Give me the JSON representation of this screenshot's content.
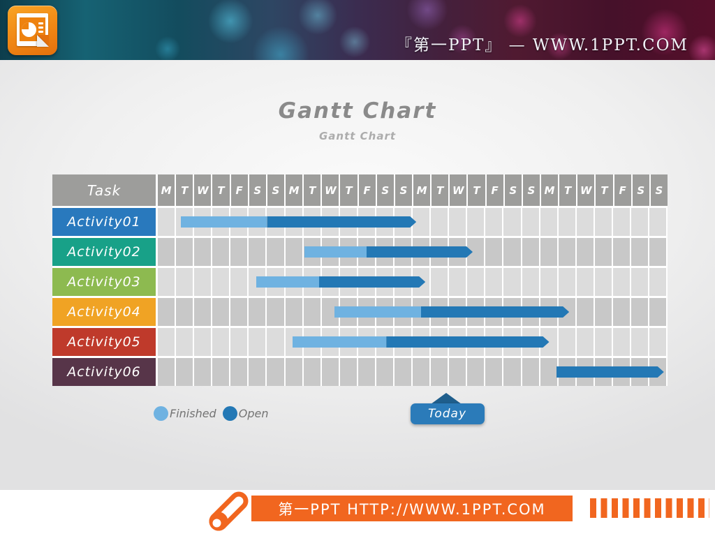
{
  "banner": {
    "brand_text": "『第一PPT』 — WWW.1PPT.COM",
    "logo_icon": "powerpoint-document-icon"
  },
  "slide": {
    "title": "Gantt Chart",
    "subtitle": "Gantt Chart"
  },
  "chart_data": {
    "type": "gantt",
    "title": "Gantt Chart",
    "task_header": "Task",
    "day_labels": [
      "M",
      "T",
      "W",
      "T",
      "F",
      "S",
      "S",
      "M",
      "T",
      "W",
      "T",
      "F",
      "S",
      "S",
      "M",
      "T",
      "W",
      "T",
      "F",
      "S",
      "S",
      "M",
      "T",
      "W",
      "T",
      "F",
      "S",
      "S"
    ],
    "total_days": 28,
    "tasks": [
      {
        "label": "Activity01",
        "color": "#2979BD",
        "start": 1.25,
        "finished_until": 6.0,
        "end": 14.2
      },
      {
        "label": "Activity02",
        "color": "#18A188",
        "start": 8.05,
        "finished_until": 11.45,
        "end": 17.3
      },
      {
        "label": "Activity03",
        "color": "#8DBA50",
        "start": 5.4,
        "finished_until": 8.85,
        "end": 14.7
      },
      {
        "label": "Activity04",
        "color": "#F0A324",
        "start": 9.7,
        "finished_until": 14.45,
        "end": 22.6
      },
      {
        "label": "Activity05",
        "color": "#BF3A2B",
        "start": 7.4,
        "finished_until": 12.55,
        "end": 21.5
      },
      {
        "label": "Activity06",
        "color": "#573549",
        "start": 21.9,
        "finished_until": 21.9,
        "end": 27.8
      }
    ],
    "legend": [
      {
        "label": "Finished",
        "color": "#6FB2E1"
      },
      {
        "label": "Open",
        "color": "#2378B5"
      }
    ],
    "today": {
      "label": "Today",
      "day": 15.9
    },
    "colors": {
      "finished_bar": "#6FB2E1",
      "open_bar": "#2378B5",
      "header_bg": "#9D9D9B",
      "row_bg_odd": "#DCDCDC",
      "row_bg_even": "#C8C8C8",
      "today_box": "#2B7BB9",
      "today_triangle": "#1F5E8C"
    }
  },
  "footer": {
    "site_text": "第一PPT HTTP://WWW.1PPT.COM",
    "accent_color": "#F1661F",
    "chalk_icon": "chalk-icon",
    "stripes_icon": "barcode-stripes"
  }
}
